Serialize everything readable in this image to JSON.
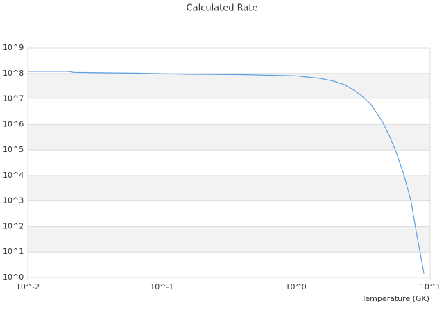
{
  "chart_data": {
    "type": "line",
    "title": "Calculated Rate",
    "x_label": "Temperature (GK)",
    "log_x": true,
    "log_y": true,
    "grid": true,
    "band_color": "#f2f2f2",
    "grid_color": "#dddddd",
    "xlim": [
      0.01,
      10
    ],
    "ylim": [
      1,
      1000000000
    ],
    "xticks": [
      {
        "value": 0.01,
        "label": "10^-2"
      },
      {
        "value": 0.1,
        "label": "10^-1"
      },
      {
        "value": 1,
        "label": "10^0"
      },
      {
        "value": 10,
        "label": "10^1"
      }
    ],
    "yticks": [
      {
        "value": 1,
        "label": "10^0"
      },
      {
        "value": 10,
        "label": "10^1"
      },
      {
        "value": 100,
        "label": "10^2"
      },
      {
        "value": 1000,
        "label": "10^3"
      },
      {
        "value": 10000,
        "label": "10^4"
      },
      {
        "value": 100000,
        "label": "10^5"
      },
      {
        "value": 1000000,
        "label": "10^6"
      },
      {
        "value": 10000000,
        "label": "10^7"
      },
      {
        "value": 100000000,
        "label": "10^8"
      },
      {
        "value": 1000000000,
        "label": "10^9"
      }
    ],
    "x": [
      0.01,
      0.02,
      0.022,
      0.04,
      0.07,
      0.08,
      0.15,
      0.4,
      0.6,
      0.8,
      1,
      1.2,
      1.5,
      1.9,
      2.3,
      2.7,
      3.1,
      3.6,
      4.4,
      5,
      5.6,
      6.4,
      7.2,
      7.9,
      9
    ],
    "series": [
      {
        "color": "#5b9fe3",
        "values": [
          120000000,
          120000000,
          110000000,
          105000000,
          102000000,
          100000000,
          93000000,
          90000000,
          85000000,
          82000000,
          80000000,
          72000000,
          64000000,
          50000000,
          36000000,
          22000000,
          13000000,
          6300000,
          1300000,
          330000,
          78000,
          10000,
          1000,
          59,
          1.4
        ]
      }
    ]
  }
}
